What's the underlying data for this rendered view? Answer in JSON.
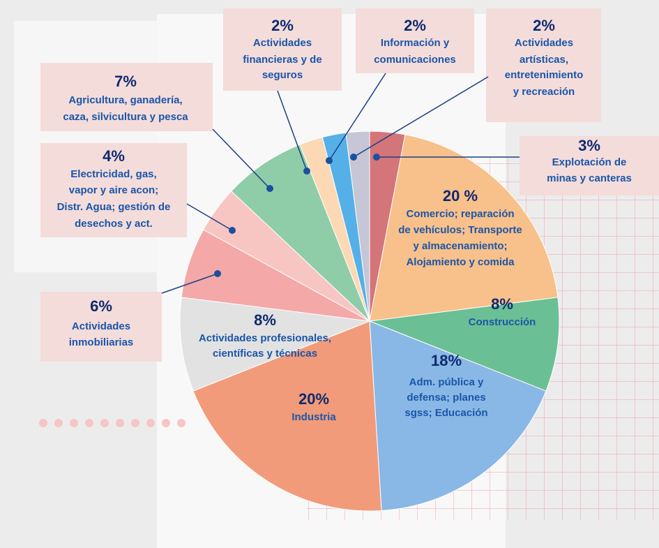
{
  "chart_data": {
    "type": "pie",
    "categories": [
      [
        "Explotación de",
        "minas y canteras"
      ],
      [
        "Comercio; reparación",
        "de vehículos; Transporte",
        "y almacenamiento;",
        "Alojamiento y comida"
      ],
      [
        "Construcción"
      ],
      [
        "Adm. pública y",
        "defensa; planes",
        "sgss; Educación"
      ],
      [
        "Industria"
      ],
      [
        "Actividades profesionales,",
        "científicas y técnicas"
      ],
      [
        "Actividades",
        "inmobiliarias"
      ],
      [
        "Electricidad, gas,",
        "vapor y aire acon;",
        "Distr. Agua; gestión de",
        "desechos y act."
      ],
      [
        "Agricultura, ganadería,",
        "caza, silvicultura y pesca"
      ],
      [
        "Actividades",
        "financieras y de",
        "seguros"
      ],
      [
        "Información y",
        "comunicaciones"
      ],
      [
        "Actividades",
        "artísticas,",
        "entretenimiento",
        "y recreación"
      ]
    ],
    "values": [
      3,
      20,
      8,
      18,
      20,
      8,
      6,
      4,
      7,
      2,
      2,
      2
    ],
    "value_labels": [
      "3%",
      "20 %",
      "8%",
      "18%",
      "20%",
      "8%",
      "6%",
      "4%",
      "7%",
      "2%",
      "2%",
      "2%"
    ],
    "colors": [
      "#d4757a",
      "#f8c08a",
      "#6bbf95",
      "#8ab8e6",
      "#f29b7a",
      "#e2e2e2",
      "#f4a8a8",
      "#f8c6c2",
      "#8fcca8",
      "#fcd9b4",
      "#56b0e8",
      "#c6c6d6"
    ]
  }
}
